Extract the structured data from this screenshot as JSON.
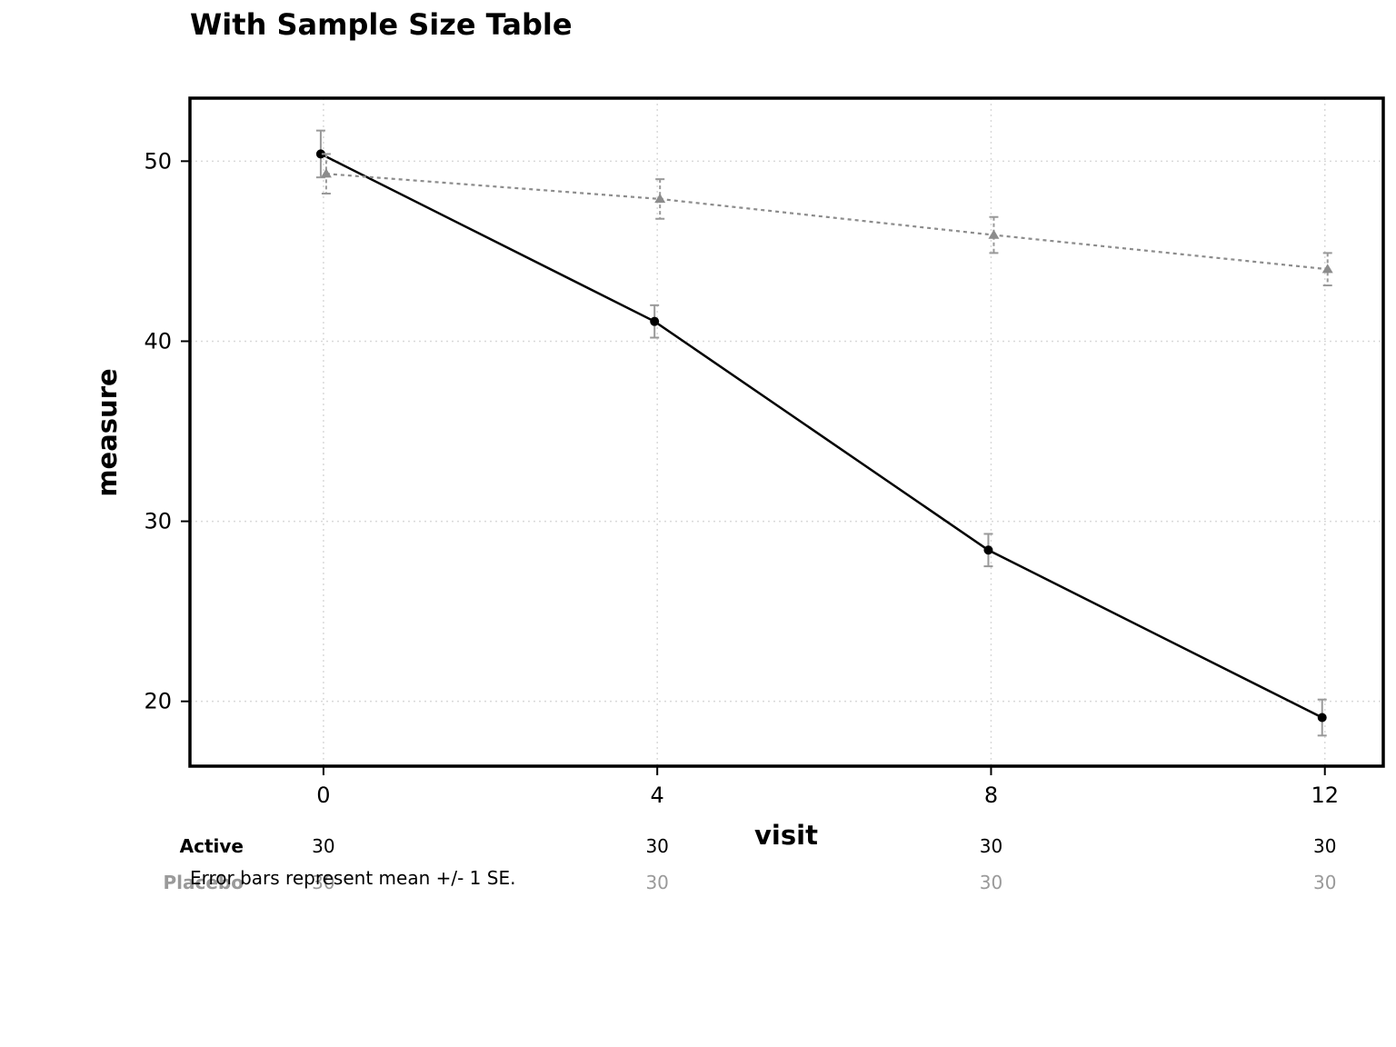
{
  "chart_data": {
    "type": "line",
    "title": "With Sample Size Table",
    "xlabel": "visit",
    "ylabel": "measure",
    "x": [
      0,
      4,
      8,
      12
    ],
    "xlim": [
      -1.6,
      12.7
    ],
    "ylim": [
      16.4,
      53.5
    ],
    "xticks": [
      0,
      4,
      8,
      12
    ],
    "yticks": [
      20,
      30,
      40,
      50
    ],
    "grid": true,
    "series": [
      {
        "name": "Active",
        "color": "#000000",
        "linestyle": "solid",
        "marker": "circle",
        "values": [
          50.4,
          41.1,
          28.4,
          19.1
        ],
        "se": [
          1.3,
          0.9,
          0.9,
          1.0
        ]
      },
      {
        "name": "Placebo",
        "color": "#8c8c8c",
        "linestyle": "dotted",
        "marker": "triangle",
        "values": [
          49.3,
          47.9,
          45.9,
          44.0
        ],
        "se": [
          1.1,
          1.1,
          1.0,
          0.9
        ]
      }
    ],
    "sample_size_table": [
      {
        "group": "Active",
        "color": "#000000",
        "counts": [
          "30",
          "30",
          "30",
          "30"
        ]
      },
      {
        "group": "Placebo",
        "color": "#9a9a9a",
        "counts": [
          "30",
          "30",
          "30",
          "30"
        ]
      }
    ],
    "caption": "Error bars represent mean +/- 1 SE."
  }
}
